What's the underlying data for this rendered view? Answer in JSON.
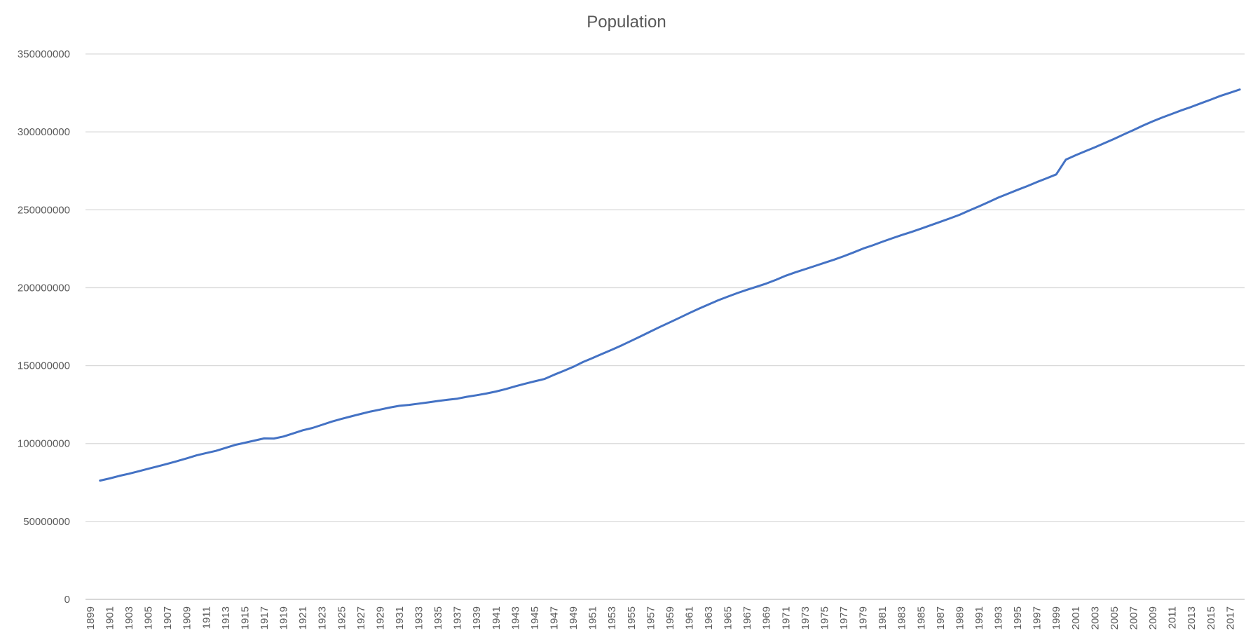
{
  "chart_data": {
    "type": "line",
    "title": "Population",
    "xlabel": "",
    "ylabel": "",
    "ylim": [
      0,
      350000000
    ],
    "y_ticks": [
      0,
      50000000,
      100000000,
      150000000,
      200000000,
      250000000,
      300000000,
      350000000
    ],
    "grid": true,
    "legend": "none",
    "x_tick_labels": [
      "1899",
      "1901",
      "1903",
      "1905",
      "1907",
      "1909",
      "1911",
      "1913",
      "1915",
      "1917",
      "1919",
      "1921",
      "1923",
      "1925",
      "1927",
      "1929",
      "1931",
      "1933",
      "1935",
      "1937",
      "1939",
      "1941",
      "1943",
      "1945",
      "1947",
      "1949",
      "1951",
      "1953",
      "1955",
      "1957",
      "1959",
      "1961",
      "1963",
      "1965",
      "1967",
      "1969",
      "1971",
      "1973",
      "1975",
      "1977",
      "1979",
      "1981",
      "1983",
      "1985",
      "1987",
      "1989",
      "1991",
      "1993",
      "1995",
      "1997",
      "1999",
      "2001",
      "2003",
      "2005",
      "2007",
      "2009",
      "2011",
      "2013",
      "2015",
      "2017"
    ],
    "series": [
      {
        "color": "#4472c4",
        "x": [
          1900,
          1901,
          1902,
          1903,
          1904,
          1905,
          1906,
          1907,
          1908,
          1909,
          1910,
          1911,
          1912,
          1913,
          1914,
          1915,
          1916,
          1917,
          1918,
          1919,
          1920,
          1921,
          1922,
          1923,
          1924,
          1925,
          1926,
          1927,
          1928,
          1929,
          1930,
          1931,
          1932,
          1933,
          1934,
          1935,
          1936,
          1937,
          1938,
          1939,
          1940,
          1941,
          1942,
          1943,
          1944,
          1945,
          1946,
          1947,
          1948,
          1949,
          1950,
          1951,
          1952,
          1953,
          1954,
          1955,
          1956,
          1957,
          1958,
          1959,
          1960,
          1961,
          1962,
          1963,
          1964,
          1965,
          1966,
          1967,
          1968,
          1969,
          1970,
          1971,
          1972,
          1973,
          1974,
          1975,
          1976,
          1977,
          1978,
          1979,
          1980,
          1981,
          1982,
          1983,
          1984,
          1985,
          1986,
          1987,
          1988,
          1989,
          1990,
          1991,
          1992,
          1993,
          1994,
          1995,
          1996,
          1997,
          1998,
          1999,
          2000,
          2001,
          2002,
          2003,
          2004,
          2005,
          2006,
          2007,
          2008,
          2009,
          2010,
          2011,
          2012,
          2013,
          2014,
          2015,
          2016,
          2017,
          2018
        ],
        "values": [
          76200000,
          77600000,
          79200000,
          80600000,
          82200000,
          83800000,
          85400000,
          87000000,
          88700000,
          90500000,
          92400000,
          93900000,
          95300000,
          97200000,
          99100000,
          100500000,
          101900000,
          103300000,
          103200000,
          104500000,
          106500000,
          108500000,
          110000000,
          112000000,
          114100000,
          115800000,
          117400000,
          119000000,
          120500000,
          121800000,
          123100000,
          124200000,
          124800000,
          125600000,
          126400000,
          127300000,
          128100000,
          128800000,
          130000000,
          131000000,
          132100000,
          133400000,
          134900000,
          136700000,
          138400000,
          139900000,
          141400000,
          144100000,
          146600000,
          149200000,
          152300000,
          154900000,
          157600000,
          160200000,
          163000000,
          165900000,
          168900000,
          171900000,
          174900000,
          177800000,
          180700000,
          183700000,
          186500000,
          189200000,
          191900000,
          194300000,
          196600000,
          198700000,
          200700000,
          202700000,
          205100000,
          207700000,
          209900000,
          211900000,
          213900000,
          216000000,
          218000000,
          220200000,
          222600000,
          225100000,
          227200000,
          229500000,
          231700000,
          233800000,
          235800000,
          237900000,
          240100000,
          242300000,
          244500000,
          246800000,
          249600000,
          252200000,
          255000000,
          257800000,
          260300000,
          262800000,
          265200000,
          267800000,
          270200000,
          272700000,
          282200000,
          285000000,
          287600000,
          290100000,
          292800000,
          295500000,
          298400000,
          301200000,
          304100000,
          306800000,
          309300000,
          311600000,
          313900000,
          316100000,
          318400000,
          320700000,
          323100000,
          325100000,
          327200000
        ]
      }
    ]
  }
}
